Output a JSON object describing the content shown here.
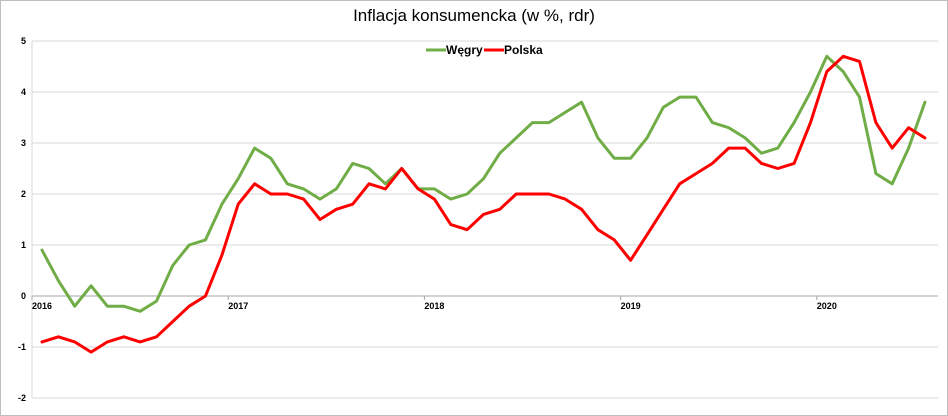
{
  "chart_data": {
    "type": "line",
    "title": "Inflacja konsumencka (w %, rdr)",
    "xlabel": "",
    "ylabel": "",
    "ylim": [
      -2,
      5
    ],
    "yticks": [
      5,
      4,
      3,
      2,
      1,
      0,
      -1,
      -2
    ],
    "xtick_labels": [
      "2016",
      "2017",
      "2018",
      "2019",
      "2020"
    ],
    "xtick_index": [
      0,
      12,
      24,
      36,
      48
    ],
    "months": 55,
    "grid": "horizontal",
    "legend": "top-center",
    "series": [
      {
        "name": "Węgry",
        "color": "#70ad47",
        "values": [
          0.9,
          0.3,
          -0.2,
          0.2,
          -0.2,
          -0.2,
          -0.3,
          -0.1,
          0.6,
          1.0,
          1.1,
          1.8,
          2.3,
          2.9,
          2.7,
          2.2,
          2.1,
          1.9,
          2.1,
          2.6,
          2.5,
          2.2,
          2.5,
          2.1,
          2.1,
          1.9,
          2.0,
          2.3,
          2.8,
          3.1,
          3.4,
          3.4,
          3.6,
          3.8,
          3.1,
          2.7,
          2.7,
          3.1,
          3.7,
          3.9,
          3.9,
          3.4,
          3.3,
          3.1,
          2.8,
          2.9,
          3.4,
          4.0,
          4.7,
          4.4,
          3.9,
          2.4,
          2.2,
          2.9,
          3.8
        ]
      },
      {
        "name": "Polska",
        "color": "#ff0000",
        "values": [
          -0.9,
          -0.8,
          -0.9,
          -1.1,
          -0.9,
          -0.8,
          -0.9,
          -0.8,
          -0.5,
          -0.2,
          0.0,
          0.8,
          1.8,
          2.2,
          2.0,
          2.0,
          1.9,
          1.5,
          1.7,
          1.8,
          2.2,
          2.1,
          2.5,
          2.1,
          1.9,
          1.4,
          1.3,
          1.6,
          1.7,
          2.0,
          2.0,
          2.0,
          1.9,
          1.7,
          1.3,
          1.1,
          0.7,
          1.2,
          1.7,
          2.2,
          2.4,
          2.6,
          2.9,
          2.9,
          2.6,
          2.5,
          2.6,
          3.4,
          4.4,
          4.7,
          4.6,
          3.4,
          2.9,
          3.3,
          3.1
        ]
      }
    ]
  }
}
